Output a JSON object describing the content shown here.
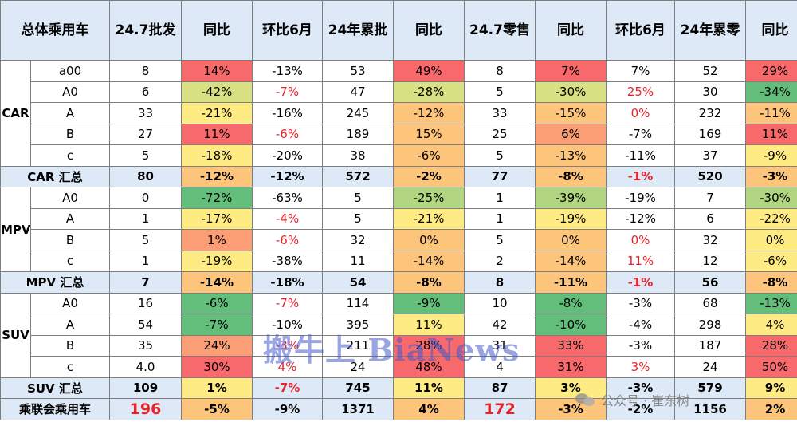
{
  "headers": [
    "总体乘用车",
    "24.7批发",
    "同比",
    "环比6月",
    "24年累批",
    "同比",
    "24.7零售",
    "同比",
    "环比6月",
    "24年累零",
    "同比"
  ],
  "groups": {
    "car": "CAR",
    "mpv": "MPV",
    "suv": "SUV"
  },
  "rows": {
    "car_a00": [
      "a00",
      "8",
      "14%",
      "-13%",
      "53",
      "49%",
      "8",
      "7%",
      "7%",
      "52",
      "29%"
    ],
    "car_a0": [
      "A0",
      "6",
      "-42%",
      "-7%",
      "47",
      "-28%",
      "5",
      "-30%",
      "25%",
      "30",
      "-34%"
    ],
    "car_a": [
      "A",
      "33",
      "-21%",
      "-16%",
      "245",
      "-12%",
      "33",
      "-15%",
      "0%",
      "232",
      "-11%"
    ],
    "car_b": [
      "B",
      "27",
      "11%",
      "-6%",
      "189",
      "15%",
      "25",
      "6%",
      "-7%",
      "169",
      "11%"
    ],
    "car_c": [
      "c",
      "5",
      "-18%",
      "-20%",
      "38",
      "-6%",
      "5",
      "-13%",
      "-11%",
      "37",
      "-9%"
    ],
    "car_sum": [
      "CAR 汇总",
      "80",
      "-12%",
      "-12%",
      "572",
      "-2%",
      "77",
      "-8%",
      "-1%",
      "520",
      "-3%"
    ],
    "mpv_a0": [
      "A0",
      "0",
      "-72%",
      "-63%",
      "5",
      "-25%",
      "1",
      "-39%",
      "-19%",
      "7",
      "-30%"
    ],
    "mpv_a": [
      "A",
      "1",
      "-17%",
      "-4%",
      "5",
      "-21%",
      "1",
      "-19%",
      "-12%",
      "6",
      "-22%"
    ],
    "mpv_b": [
      "B",
      "5",
      "1%",
      "-6%",
      "32",
      "0%",
      "5",
      "0%",
      "0%",
      "32",
      "0%"
    ],
    "mpv_c": [
      "c",
      "1",
      "-19%",
      "-38%",
      "11",
      "-14%",
      "2",
      "-14%",
      "11%",
      "12",
      "-6%"
    ],
    "mpv_sum": [
      "MPV 汇总",
      "7",
      "-14%",
      "-18%",
      "54",
      "-8%",
      "8",
      "-11%",
      "-1%",
      "56",
      "-8%"
    ],
    "suv_a0": [
      "A0",
      "16",
      "-6%",
      "-7%",
      "114",
      "-9%",
      "10",
      "-8%",
      "-3%",
      "68",
      "-13%"
    ],
    "suv_a": [
      "A",
      "54",
      "-7%",
      "-10%",
      "395",
      "11%",
      "42",
      "-10%",
      "-4%",
      "298",
      "4%"
    ],
    "suv_b": [
      "B",
      "35",
      "24%",
      "-3%",
      "211",
      "28%",
      "31",
      "33%",
      "-3%",
      "187",
      "28%"
    ],
    "suv_c": [
      "c",
      "4.0",
      "30%",
      "4%",
      "24",
      "48%",
      "4",
      "31%",
      "3%",
      "24",
      "50%"
    ],
    "suv_sum": [
      "SUV 汇总",
      "109",
      "1%",
      "-7%",
      "745",
      "11%",
      "87",
      "3%",
      "-3%",
      "579",
      "9%"
    ],
    "total": [
      "乘联会乘用车",
      "196",
      "-5%",
      "-9%",
      "1371",
      "4%",
      "172",
      "-3%",
      "-2%",
      "1156",
      "2%"
    ]
  },
  "colors": {
    "dark_red": "#f8696b",
    "light_red": "#fb9d75",
    "orange": "#fdc47c",
    "yellow": "#ffeb84",
    "yellow_green": "#d7e082",
    "light_green": "#b1d580",
    "green": "#63be7b",
    "header_bg": "#dde9f6",
    "red_text": "#e8242b"
  },
  "watermark": "搬牛上 BiaNews",
  "wechat_credit": "公众号 · 崔东树"
}
